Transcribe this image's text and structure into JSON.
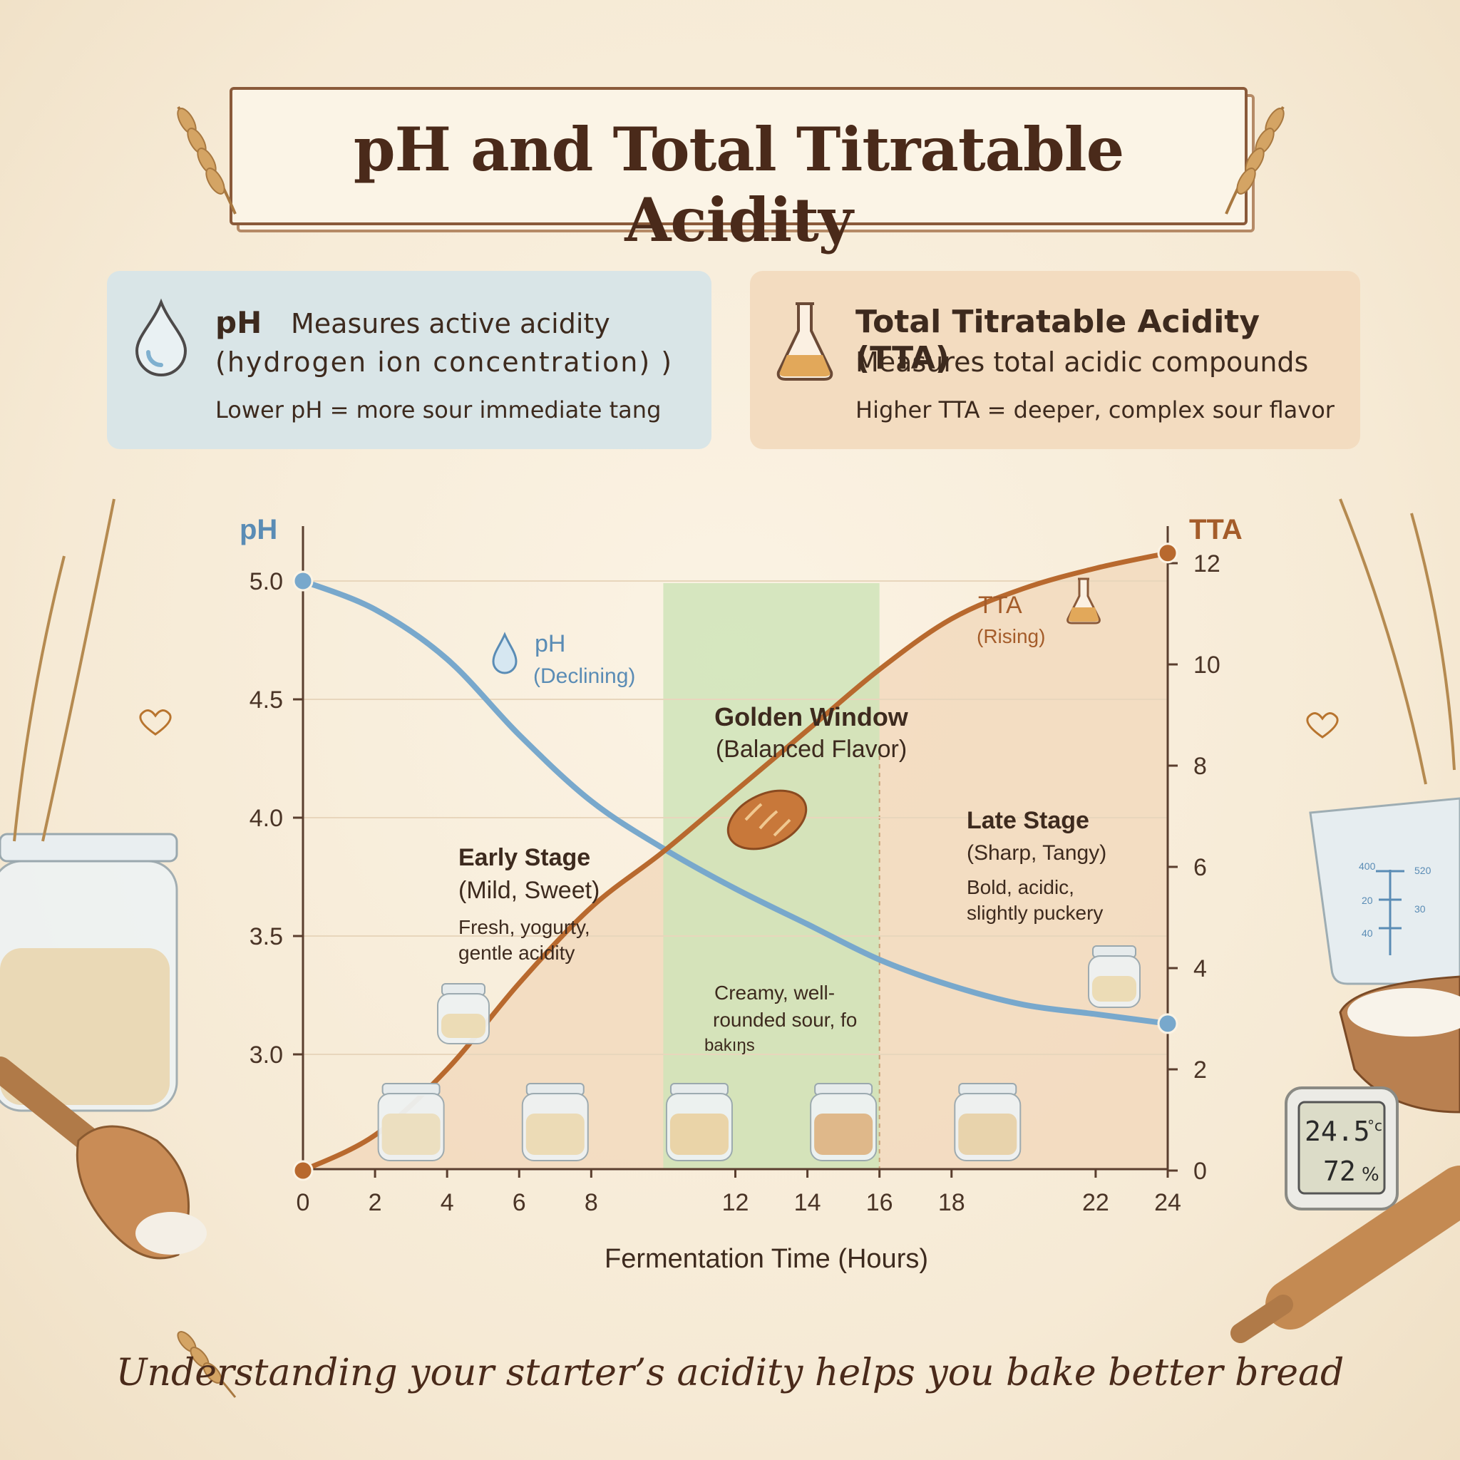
{
  "title": "pH and Total Titratable Acidity",
  "ph_card": {
    "heading": "pH",
    "line1": "Measures active acidity",
    "line2": "(hydrogen ion concentration) )",
    "line3": "Lower pH = more sour immediate tang",
    "icon": "water-drop-icon"
  },
  "tta_card": {
    "heading": "Total Titratable Acidity (TTA)",
    "line1": "Measures total acidic compounds",
    "line2": "Higher TTA = deeper, complex sour flavor",
    "icon": "flask-icon"
  },
  "footer": "Understanding your starter’s acidity helps you bake better bread",
  "colors": {
    "ph": "#6fa0c4",
    "tta": "#b8692e",
    "golden_window": "#cfe4b8",
    "tta_area": "#f2d9bd",
    "text": "#3d2a1e"
  },
  "chart_data": {
    "type": "line",
    "xlabel": "Fermentation Time (Hours)",
    "x_ticks": [
      0,
      2,
      4,
      6,
      8,
      12,
      14,
      16,
      18,
      22,
      24
    ],
    "left_axis": {
      "label": "pH",
      "ticks": [
        "5.0",
        "4.5",
        "4.0",
        "3.5",
        "3.0"
      ],
      "range": [
        2.55,
        5.0
      ]
    },
    "right_axis": {
      "label": "TTA",
      "ticks": [
        "12",
        "10",
        "8",
        "6",
        "4",
        "2",
        "0"
      ],
      "range": [
        0,
        12
      ]
    },
    "series": [
      {
        "name": "pH",
        "axis": "left",
        "points": [
          [
            0,
            5.0
          ],
          [
            2,
            4.88
          ],
          [
            4,
            4.67
          ],
          [
            6,
            4.35
          ],
          [
            8,
            4.07
          ],
          [
            10,
            3.87
          ],
          [
            12,
            3.7
          ],
          [
            14,
            3.55
          ],
          [
            16,
            3.4
          ],
          [
            18,
            3.29
          ],
          [
            20,
            3.21
          ],
          [
            22,
            3.17
          ],
          [
            24,
            3.13
          ]
        ]
      },
      {
        "name": "TTA",
        "axis": "right",
        "points": [
          [
            0,
            0
          ],
          [
            2,
            0.7
          ],
          [
            4,
            2.0
          ],
          [
            6,
            3.7
          ],
          [
            8,
            5.2
          ],
          [
            10,
            6.3
          ],
          [
            12,
            7.5
          ],
          [
            14,
            8.7
          ],
          [
            16,
            9.9
          ],
          [
            18,
            10.9
          ],
          [
            20,
            11.5
          ],
          [
            22,
            11.9
          ],
          [
            24,
            12.2
          ]
        ]
      }
    ],
    "series_labels": {
      "ph": [
        "pH",
        "(Declining)"
      ],
      "tta": [
        "TTA",
        "(Rising)"
      ]
    },
    "regions": {
      "golden_window": {
        "from": 10,
        "to": 16,
        "title": "Golden Window",
        "subtitle": "(Balanced Flavor)",
        "note_1": "Creamy, well-",
        "note_2": "rounded sour, fo",
        "note_3": "bakıŋs"
      },
      "early_stage": {
        "title": "Early Stage",
        "subtitle": "(Mild, Sweet)",
        "desc_1": "Fresh, yogurty,",
        "desc_2": "gentle acidity"
      },
      "late_stage": {
        "title": "Late Stage",
        "subtitle": "(Sharp, Tangy)",
        "desc_1": "Bold, acidic,",
        "desc_2": "slightly puckery"
      }
    },
    "grid": "horizontal",
    "legend": "inline"
  },
  "thermometer": {
    "temp": "24.5",
    "unit": "°c",
    "humidity": "72",
    "humidity_unit": "%"
  },
  "cup_marks": {
    "left": [
      "400",
      "20",
      "40"
    ],
    "right": [
      "520",
      "30"
    ]
  }
}
